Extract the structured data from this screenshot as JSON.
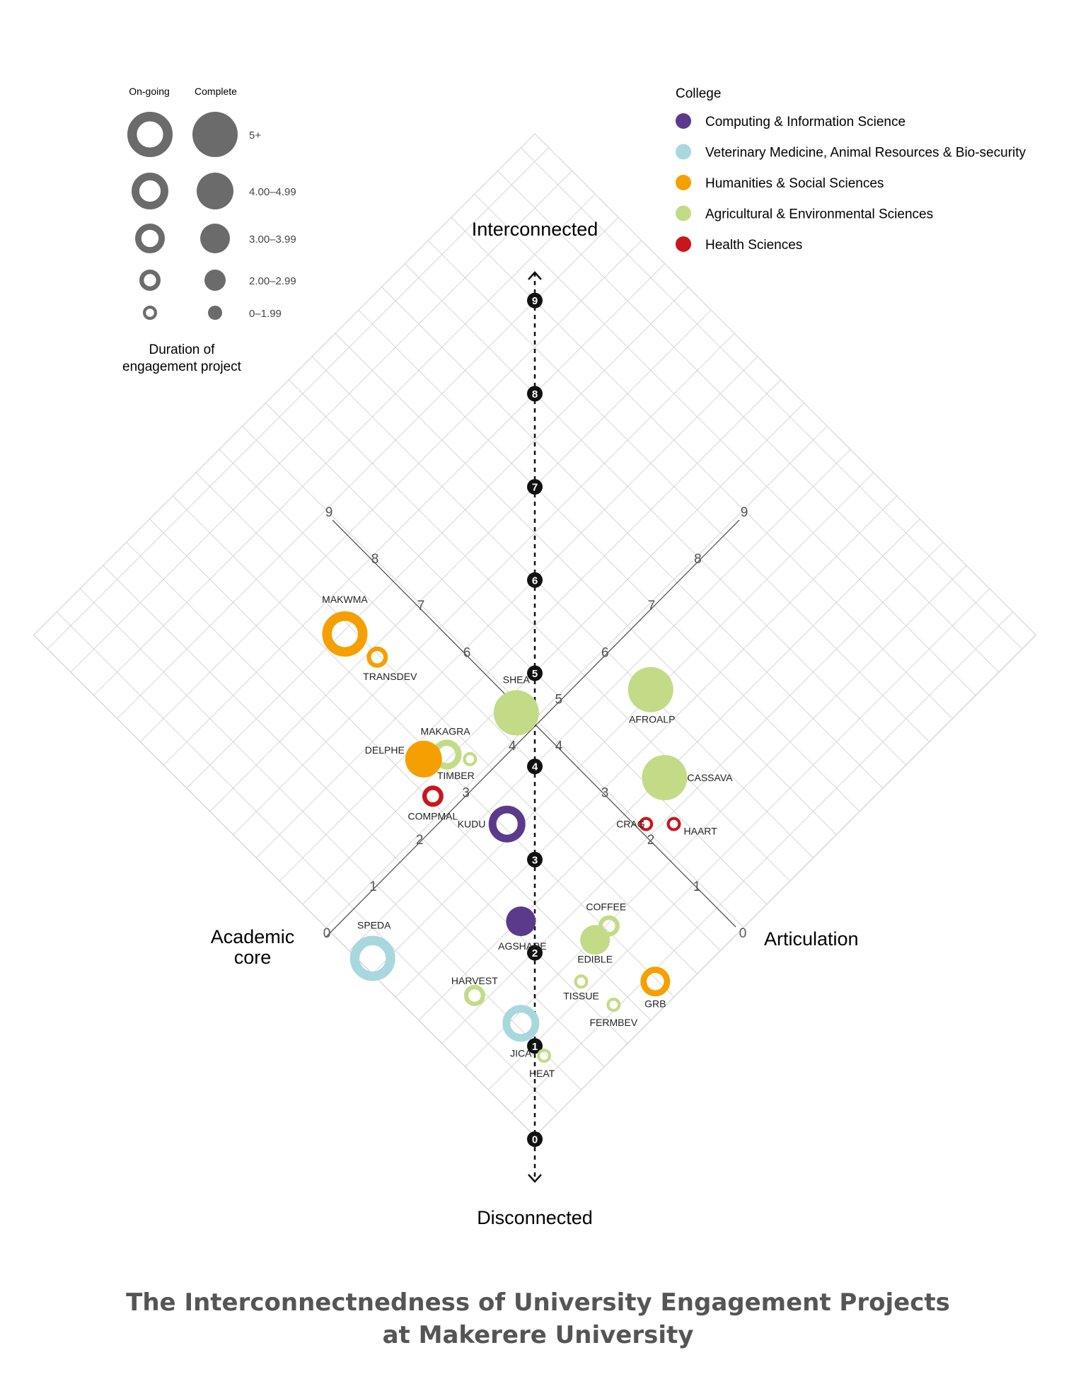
{
  "chart_data": {
    "type": "scatter",
    "title_lines": [
      "The Interconnectnedness of University Engagement Projects",
      "at Makerere University"
    ],
    "axes": {
      "academic_core": {
        "label_lines": [
          "Academic",
          "core"
        ],
        "range": [
          0,
          9
        ]
      },
      "articulation": {
        "label": "Articulation",
        "range": [
          0,
          9
        ]
      },
      "vertical": {
        "top_label": "Interconnected",
        "bottom_label": "Disconnected",
        "range": [
          0,
          9
        ]
      }
    },
    "grid": true,
    "size_legend": {
      "headers": [
        "On-going",
        "Complete"
      ],
      "classes": [
        "5+",
        "4.00–4.99",
        "3.00–3.99",
        "2.00–2.99",
        "0–1.99"
      ],
      "caption_lines": [
        "Duration of",
        "engagement project"
      ]
    },
    "college_legend": {
      "title": "College",
      "placement": "top-right",
      "entries": [
        {
          "key": "cis",
          "label": "Computing & Information Science",
          "color": "#5b3a8c"
        },
        {
          "key": "vet",
          "label": "Veterinary Medicine, Animal Resources & Bio-security",
          "color": "#a8d8de"
        },
        {
          "key": "hum",
          "label": "Humanities & Social Sciences",
          "color": "#f5a000"
        },
        {
          "key": "agr",
          "label": "Agricultural & Environmental Sciences",
          "color": "#c3db87"
        },
        {
          "key": "hs",
          "label": "Health Sciences",
          "color": "#c8161d"
        }
      ]
    },
    "points": [
      {
        "label": "MAKWMA",
        "academic_core": 7.5,
        "articulation": 3.4,
        "college": "hum",
        "status": "on-going",
        "duration_class": "5+"
      },
      {
        "label": "TRANSDEV",
        "academic_core": 6.9,
        "articulation": 3.5,
        "college": "hum",
        "status": "on-going",
        "duration_class": "2.00–2.99"
      },
      {
        "label": "SHEA",
        "academic_core": 4.8,
        "articulation": 4.4,
        "college": "agr",
        "status": "complete",
        "duration_class": "5+"
      },
      {
        "label": "MAKAGRA",
        "academic_core": 5.1,
        "articulation": 3.2,
        "college": "agr",
        "status": "on-going",
        "duration_class": "3.00–3.99"
      },
      {
        "label": "TIMBER",
        "academic_core": 4.8,
        "articulation": 3.4,
        "college": "agr",
        "status": "on-going",
        "duration_class": "0–1.99"
      },
      {
        "label": "DELPHE",
        "academic_core": 5.3,
        "articulation": 2.9,
        "college": "hum",
        "status": "complete",
        "duration_class": "4.00–4.99"
      },
      {
        "label": "AFROALP",
        "academic_core": 3.6,
        "articulation": 6.1,
        "college": "agr",
        "status": "complete",
        "duration_class": "5+"
      },
      {
        "label": "COMPMAL",
        "academic_core": 4.8,
        "articulation": 2.6,
        "college": "hs",
        "status": "on-going",
        "duration_class": "2.00–2.99"
      },
      {
        "label": "CASSAVA",
        "academic_core": 2.5,
        "articulation": 5.3,
        "college": "agr",
        "status": "complete",
        "duration_class": "5+"
      },
      {
        "label": "KUDU",
        "academic_core": 3.7,
        "articulation": 3.1,
        "college": "cis",
        "status": "on-going",
        "duration_class": "4.00–4.99"
      },
      {
        "label": "CRAG",
        "academic_core": 2.2,
        "articulation": 4.6,
        "college": "hs",
        "status": "on-going",
        "duration_class": "0–1.99"
      },
      {
        "label": "HAART",
        "academic_core": 1.9,
        "articulation": 4.9,
        "college": "hs",
        "status": "on-going",
        "duration_class": "0–1.99"
      },
      {
        "label": "SPEDA",
        "academic_core": 3.7,
        "articulation": 0.2,
        "college": "vet",
        "status": "on-going",
        "duration_class": "5+"
      },
      {
        "label": "AGSHARE",
        "academic_core": 2.5,
        "articulation": 2.2,
        "college": "cis",
        "status": "complete",
        "duration_class": "3.00–3.99"
      },
      {
        "label": "COFFEE",
        "academic_core": 1.5,
        "articulation": 3.1,
        "college": "agr",
        "status": "on-going",
        "duration_class": "2.00–2.99"
      },
      {
        "label": "EDIBLE",
        "academic_core": 1.5,
        "articulation": 2.8,
        "college": "agr",
        "status": "complete",
        "duration_class": "3.00–3.99"
      },
      {
        "label": "HARVEST",
        "academic_core": 2.2,
        "articulation": 0.9,
        "college": "agr",
        "status": "on-going",
        "duration_class": "2.00–2.99"
      },
      {
        "label": "TISSUE",
        "academic_core": 1.2,
        "articulation": 2.2,
        "college": "agr",
        "status": "on-going",
        "duration_class": "0–1.99"
      },
      {
        "label": "JICA",
        "academic_core": 1.4,
        "articulation": 1.1,
        "college": "vet",
        "status": "on-going",
        "duration_class": "4.00–4.99"
      },
      {
        "label": "HEAT",
        "academic_core": 0.8,
        "articulation": 1.0,
        "college": "agr",
        "status": "on-going",
        "duration_class": "0–1.99"
      },
      {
        "label": "GRB",
        "academic_core": 0.4,
        "articulation": 3.0,
        "college": "hum",
        "status": "on-going",
        "duration_class": "3.00–3.99"
      },
      {
        "label": "FERMBEV",
        "academic_core": 0.6,
        "articulation": 2.3,
        "college": "agr",
        "status": "on-going",
        "duration_class": "0–1.99"
      }
    ]
  },
  "tick_labels": [
    "0",
    "1",
    "2",
    "3",
    "4",
    "5",
    "6",
    "7",
    "8",
    "9"
  ]
}
